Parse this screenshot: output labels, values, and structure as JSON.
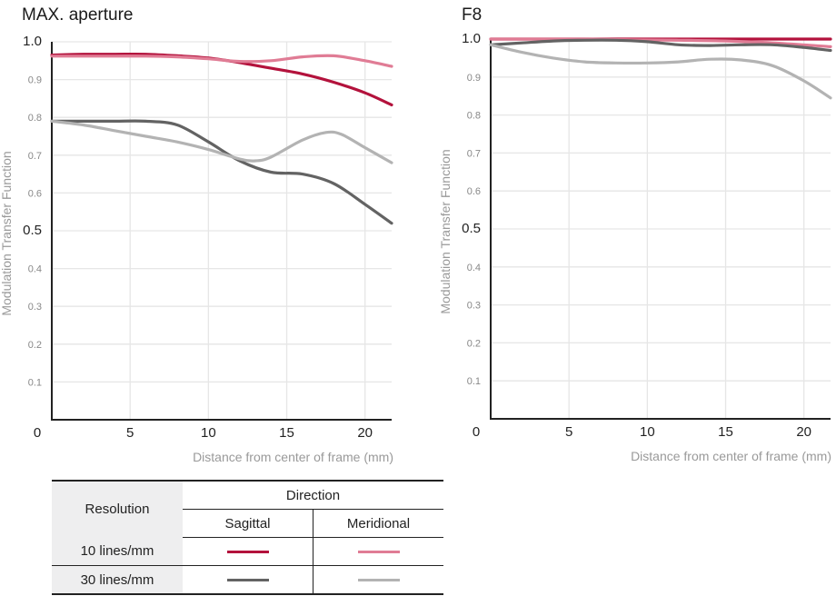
{
  "chart_data": [
    {
      "type": "line",
      "title": "MAX. aperture",
      "xlabel": "Distance from center of frame (mm)",
      "ylabel": "Modulation Transfer Function",
      "xlim": [
        0,
        21.7
      ],
      "ylim": [
        0,
        1.0
      ],
      "x_origin_label": "0",
      "xticks": [
        "5",
        "10",
        "15",
        "20"
      ],
      "yticks": [
        "1.0",
        "0.9",
        "0.8",
        "0.7",
        "0.6",
        "0.5",
        "0.4",
        "0.3",
        "0.2",
        "0.1"
      ],
      "grid": true,
      "series": [
        {
          "key": "s10",
          "x": [
            0,
            2,
            4,
            6,
            8,
            10,
            12,
            14,
            16,
            18,
            20,
            21.7
          ],
          "values": [
            0.965,
            0.967,
            0.967,
            0.967,
            0.963,
            0.957,
            0.945,
            0.93,
            0.915,
            0.893,
            0.865,
            0.833
          ]
        },
        {
          "key": "m10",
          "x": [
            0,
            2,
            4,
            6,
            8,
            10,
            12,
            14,
            16,
            18,
            20,
            21.7
          ],
          "values": [
            0.962,
            0.962,
            0.962,
            0.962,
            0.96,
            0.955,
            0.948,
            0.95,
            0.96,
            0.963,
            0.95,
            0.935
          ]
        },
        {
          "key": "s30",
          "x": [
            0,
            2,
            4,
            6,
            8,
            10,
            12,
            14,
            16,
            18,
            20,
            21.7
          ],
          "values": [
            0.79,
            0.79,
            0.79,
            0.79,
            0.78,
            0.735,
            0.685,
            0.655,
            0.65,
            0.625,
            0.57,
            0.52
          ]
        },
        {
          "key": "m30",
          "x": [
            0,
            2,
            4,
            6,
            8,
            10,
            12,
            13,
            14,
            16,
            17.5,
            18.5,
            20,
            21.7
          ],
          "values": [
            0.79,
            0.78,
            0.765,
            0.75,
            0.735,
            0.715,
            0.69,
            0.685,
            0.695,
            0.74,
            0.76,
            0.755,
            0.72,
            0.68
          ]
        }
      ]
    },
    {
      "type": "line",
      "title": "F8",
      "xlabel": "Distance from center of frame (mm)",
      "ylabel": "Modulation Transfer Function",
      "xlim": [
        0,
        21.7
      ],
      "ylim": [
        0,
        1.0
      ],
      "x_origin_label": "0",
      "xticks": [
        "5",
        "10",
        "15",
        "20"
      ],
      "yticks": [
        "1.0",
        "0.9",
        "0.8",
        "0.7",
        "0.6",
        "0.5",
        "0.4",
        "0.3",
        "0.2",
        "0.1"
      ],
      "grid": true,
      "series": [
        {
          "key": "s10",
          "x": [
            0,
            5,
            10,
            15,
            20,
            21.7
          ],
          "values": [
            1.0,
            1.0,
            1.0,
            1.0,
            1.0,
            1.0
          ]
        },
        {
          "key": "m10",
          "x": [
            0,
            3,
            6,
            9,
            12,
            15,
            18,
            21.7
          ],
          "values": [
            1.0,
            1.0,
            1.0,
            0.998,
            0.997,
            0.995,
            0.99,
            0.98
          ]
        },
        {
          "key": "s30",
          "x": [
            0,
            2,
            4,
            6,
            8,
            10,
            12,
            14,
            16,
            18,
            20,
            21.7
          ],
          "values": [
            0.985,
            0.99,
            0.995,
            0.997,
            0.997,
            0.993,
            0.985,
            0.983,
            0.985,
            0.985,
            0.978,
            0.97
          ]
        },
        {
          "key": "m30",
          "x": [
            0,
            2,
            4,
            6,
            8,
            10,
            12,
            14,
            16,
            18,
            20,
            21.7
          ],
          "values": [
            0.985,
            0.965,
            0.95,
            0.94,
            0.937,
            0.937,
            0.94,
            0.947,
            0.945,
            0.93,
            0.89,
            0.845
          ]
        }
      ]
    }
  ],
  "colors": {
    "s10": "#b3123c",
    "m10": "#e07c95",
    "s30": "#636363",
    "m30": "#b3b3b3"
  },
  "legend": {
    "resolution_header": "Resolution",
    "direction_header": "Direction",
    "sagittal_label": "Sagittal",
    "meridional_label": "Meridional",
    "rows": [
      {
        "label": "10 lines/mm",
        "sagittal": "s10",
        "meridional": "m10"
      },
      {
        "label": "30 lines/mm",
        "sagittal": "s30",
        "meridional": "m30"
      }
    ]
  }
}
